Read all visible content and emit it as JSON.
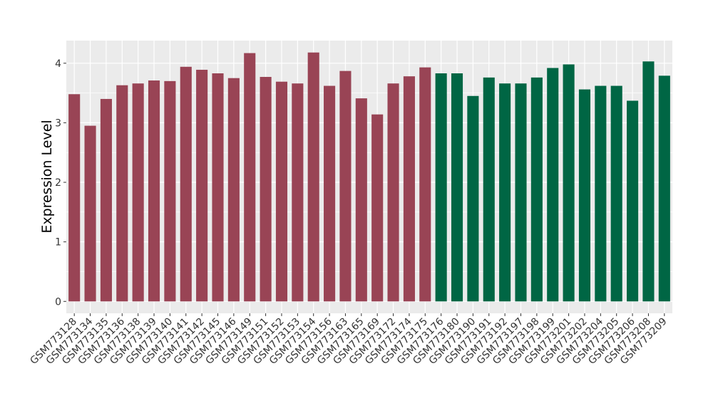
{
  "chart_data": {
    "type": "bar",
    "y_label": "Expression Level",
    "categories": [
      "GSM773128",
      "GSM773134",
      "GSM773135",
      "GSM773136",
      "GSM773138",
      "GSM773139",
      "GSM773140",
      "GSM773141",
      "GSM773142",
      "GSM773145",
      "GSM773146",
      "GSM773149",
      "GSM773151",
      "GSM773152",
      "GSM773153",
      "GSM773154",
      "GSM773156",
      "GSM773163",
      "GSM773165",
      "GSM773169",
      "GSM773172",
      "GSM773174",
      "GSM773175",
      "GSM773176",
      "GSM773180",
      "GSM773190",
      "GSM773191",
      "GSM773192",
      "GSM773197",
      "GSM773198",
      "GSM773199",
      "GSM773201",
      "GSM773202",
      "GSM773204",
      "GSM773205",
      "GSM773206",
      "GSM773208",
      "GSM773209"
    ],
    "values": [
      3.48,
      2.95,
      3.4,
      3.63,
      3.66,
      3.71,
      3.7,
      3.94,
      3.89,
      3.83,
      3.75,
      4.17,
      3.77,
      3.69,
      3.66,
      4.18,
      3.62,
      3.87,
      3.41,
      3.14,
      3.66,
      3.78,
      3.93,
      3.83,
      3.83,
      3.45,
      3.76,
      3.66,
      3.66,
      3.76,
      3.92,
      3.98,
      3.56,
      3.62,
      3.62,
      3.37,
      4.03,
      3.79
    ],
    "colors": [
      "#994455",
      "#994455",
      "#994455",
      "#994455",
      "#994455",
      "#994455",
      "#994455",
      "#994455",
      "#994455",
      "#994455",
      "#994455",
      "#994455",
      "#994455",
      "#994455",
      "#994455",
      "#994455",
      "#994455",
      "#994455",
      "#994455",
      "#994455",
      "#994455",
      "#994455",
      "#994455",
      "#006644",
      "#006644",
      "#006644",
      "#006644",
      "#006644",
      "#006644",
      "#006644",
      "#006644",
      "#006644",
      "#006644",
      "#006644",
      "#006644",
      "#006644",
      "#006644",
      "#006644"
    ],
    "ylim": [
      -0.2,
      4.38
    ],
    "yticks": [
      0,
      1,
      2,
      3,
      4
    ],
    "grid": true
  }
}
